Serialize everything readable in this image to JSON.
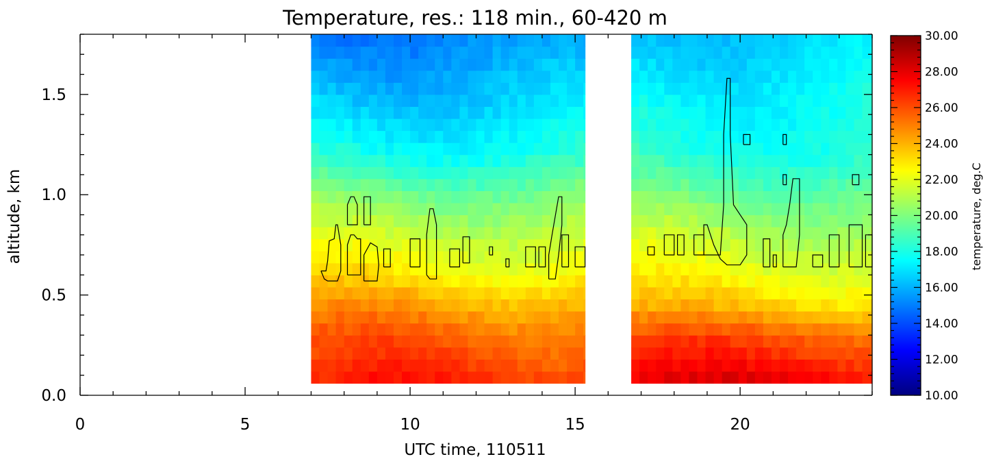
{
  "chart_data": {
    "type": "heatmap",
    "title": "Temperature, res.: 118 min.,  60-420 m",
    "xlabel": "UTC time, 110511",
    "ylabel": "altitude, km",
    "xlim": [
      0,
      24
    ],
    "ylim": [
      0,
      1.8
    ],
    "x_ticks": [
      0,
      5,
      10,
      15,
      20
    ],
    "x_tick_labels": [
      "0",
      "5",
      "10",
      "15",
      "20"
    ],
    "y_ticks": [
      0,
      0.5,
      1.0,
      1.5
    ],
    "y_tick_labels": [
      "0.0",
      "0.5",
      "1.0",
      "1.5"
    ],
    "colorbar": {
      "label": "temperature, deg.C",
      "min": 10,
      "max": 30,
      "tick_labels": [
        "10.00",
        "12.00",
        "14.00",
        "16.00",
        "18.00",
        "20.00",
        "22.00",
        "24.00",
        "26.00",
        "28.00",
        "30.00"
      ],
      "colormap": [
        "#00007f",
        "#0000ff",
        "#007fff",
        "#00ffff",
        "#7fff7f",
        "#ffff00",
        "#ff7f00",
        "#ff0000",
        "#7f0000"
      ]
    },
    "data_segments": [
      {
        "x_start": 7.0,
        "x_end": 15.3
      },
      {
        "x_start": 16.7,
        "x_end": 24.0
      }
    ],
    "altitude_range_km": [
      0.06,
      1.8
    ],
    "time_step_h": 0.25,
    "altitude_step_km": 0.06,
    "temperature_profile": [
      {
        "altitude_km": 0.06,
        "left_segment": 26.7,
        "right_segment": 27.8
      },
      {
        "altitude_km": 0.3,
        "left_segment": 25.5,
        "right_segment": 25.7
      },
      {
        "altitude_km": 0.45,
        "left_segment": 24.3,
        "right_segment": 23.5
      },
      {
        "altitude_km": 0.6,
        "left_segment": 22.8,
        "right_segment": 22.3
      },
      {
        "altitude_km": 0.8,
        "left_segment": 21.5,
        "right_segment": 21.2
      },
      {
        "altitude_km": 1.0,
        "left_segment": 20.0,
        "right_segment": 19.7
      },
      {
        "altitude_km": 1.2,
        "left_segment": 18.0,
        "right_segment": 18.3
      },
      {
        "altitude_km": 1.5,
        "left_segment": 16.5,
        "right_segment": 17.6
      },
      {
        "altitude_km": 1.8,
        "left_segment": 15.2,
        "right_segment": 16.6
      }
    ],
    "contours": [
      {
        "x": [
          7.3,
          7.45,
          7.5,
          7.55,
          7.7,
          7.75,
          7.8,
          7.9,
          7.9,
          7.8,
          7.5,
          7.4,
          7.3,
          7.3
        ],
        "y": [
          0.62,
          0.62,
          0.67,
          0.77,
          0.78,
          0.85,
          0.85,
          0.75,
          0.62,
          0.57,
          0.57,
          0.58,
          0.62,
          0.62
        ]
      },
      {
        "x": [
          8.1,
          8.4,
          8.4,
          8.3,
          8.2,
          8.1,
          8.1
        ],
        "y": [
          0.85,
          0.85,
          0.95,
          0.99,
          0.99,
          0.95,
          0.85
        ]
      },
      {
        "x": [
          8.6,
          8.8,
          8.8,
          8.6,
          8.6
        ],
        "y": [
          0.85,
          0.85,
          0.99,
          0.99,
          0.85
        ]
      },
      {
        "x": [
          8.1,
          8.5,
          8.5,
          8.4,
          8.3,
          8.2,
          8.1,
          8.1
        ],
        "y": [
          0.6,
          0.6,
          0.78,
          0.78,
          0.8,
          0.8,
          0.75,
          0.6
        ]
      },
      {
        "x": [
          8.6,
          9.0,
          9.05,
          9.0,
          8.8,
          8.6,
          8.6
        ],
        "y": [
          0.57,
          0.57,
          0.65,
          0.74,
          0.76,
          0.7,
          0.57
        ]
      },
      {
        "x": [
          9.2,
          9.4,
          9.4,
          9.2,
          9.2
        ],
        "y": [
          0.64,
          0.64,
          0.73,
          0.73,
          0.64
        ]
      },
      {
        "x": [
          10.0,
          10.3,
          10.3,
          10.0,
          10.0
        ],
        "y": [
          0.64,
          0.64,
          0.78,
          0.78,
          0.64
        ]
      },
      {
        "x": [
          10.5,
          10.6,
          10.8,
          10.8,
          10.7,
          10.6,
          10.5,
          10.5
        ],
        "y": [
          0.6,
          0.58,
          0.58,
          0.85,
          0.93,
          0.93,
          0.8,
          0.6
        ]
      },
      {
        "x": [
          11.2,
          11.5,
          11.5,
          11.2,
          11.2
        ],
        "y": [
          0.64,
          0.64,
          0.73,
          0.73,
          0.64
        ]
      },
      {
        "x": [
          11.6,
          11.8,
          11.8,
          11.6,
          11.6
        ],
        "y": [
          0.66,
          0.66,
          0.79,
          0.79,
          0.66
        ]
      },
      {
        "x": [
          12.4,
          12.5,
          12.5,
          12.4,
          12.4
        ],
        "y": [
          0.7,
          0.7,
          0.74,
          0.74,
          0.7
        ]
      },
      {
        "x": [
          12.9,
          13.0,
          13.0,
          12.9,
          12.9
        ],
        "y": [
          0.64,
          0.64,
          0.68,
          0.68,
          0.64
        ]
      },
      {
        "x": [
          13.5,
          13.8,
          13.8,
          13.5,
          13.5
        ],
        "y": [
          0.64,
          0.64,
          0.74,
          0.74,
          0.64
        ]
      },
      {
        "x": [
          13.9,
          14.1,
          14.1,
          13.9,
          13.9
        ],
        "y": [
          0.64,
          0.64,
          0.74,
          0.74,
          0.64
        ]
      },
      {
        "x": [
          14.2,
          14.4,
          14.5,
          14.6,
          14.6,
          14.5,
          14.3,
          14.2,
          14.2
        ],
        "y": [
          0.58,
          0.58,
          0.7,
          0.85,
          0.99,
          0.99,
          0.8,
          0.7,
          0.58
        ]
      },
      {
        "x": [
          14.6,
          14.8,
          14.8,
          14.6,
          14.6
        ],
        "y": [
          0.64,
          0.64,
          0.8,
          0.8,
          0.64
        ]
      },
      {
        "x": [
          15.0,
          15.3,
          15.3,
          15.0,
          15.0
        ],
        "y": [
          0.64,
          0.64,
          0.74,
          0.74,
          0.64
        ]
      },
      {
        "x": [
          17.2,
          17.4,
          17.4,
          17.2,
          17.2
        ],
        "y": [
          0.7,
          0.7,
          0.74,
          0.74,
          0.7
        ]
      },
      {
        "x": [
          17.7,
          18.0,
          18.0,
          17.7,
          17.7
        ],
        "y": [
          0.7,
          0.7,
          0.8,
          0.8,
          0.7
        ]
      },
      {
        "x": [
          18.1,
          18.3,
          18.3,
          18.1,
          18.1
        ],
        "y": [
          0.7,
          0.7,
          0.8,
          0.8,
          0.7
        ]
      },
      {
        "x": [
          18.6,
          18.9,
          18.9,
          18.6,
          18.6
        ],
        "y": [
          0.7,
          0.7,
          0.8,
          0.8,
          0.7
        ]
      },
      {
        "x": [
          18.9,
          19.4,
          19.5,
          19.5,
          19.6,
          19.7,
          19.7,
          19.8,
          20.2,
          20.2,
          20.0,
          19.8,
          19.6,
          19.4,
          19.2,
          19.0,
          18.9,
          18.9
        ],
        "y": [
          0.7,
          0.7,
          0.95,
          1.3,
          1.58,
          1.58,
          1.3,
          0.95,
          0.85,
          0.7,
          0.65,
          0.65,
          0.65,
          0.68,
          0.75,
          0.85,
          0.85,
          0.7
        ]
      },
      {
        "x": [
          20.1,
          20.3,
          20.3,
          20.1,
          20.1
        ],
        "y": [
          1.25,
          1.25,
          1.3,
          1.3,
          1.25
        ]
      },
      {
        "x": [
          20.7,
          20.9,
          20.9,
          20.7,
          20.7
        ],
        "y": [
          0.64,
          0.64,
          0.78,
          0.78,
          0.64
        ]
      },
      {
        "x": [
          21.0,
          21.1,
          21.1,
          21.0,
          21.0
        ],
        "y": [
          0.64,
          0.64,
          0.7,
          0.7,
          0.64
        ]
      },
      {
        "x": [
          21.3,
          21.7,
          21.8,
          21.8,
          21.6,
          21.5,
          21.4,
          21.3,
          21.3
        ],
        "y": [
          0.64,
          0.64,
          0.8,
          1.08,
          1.08,
          0.95,
          0.85,
          0.8,
          0.64
        ]
      },
      {
        "x": [
          21.3,
          21.4,
          21.4,
          21.3,
          21.3
        ],
        "y": [
          1.25,
          1.25,
          1.3,
          1.3,
          1.25
        ]
      },
      {
        "x": [
          21.3,
          21.4,
          21.4,
          21.3,
          21.3
        ],
        "y": [
          1.05,
          1.05,
          1.1,
          1.1,
          1.05
        ]
      },
      {
        "x": [
          22.2,
          22.5,
          22.5,
          22.2,
          22.2
        ],
        "y": [
          0.64,
          0.64,
          0.7,
          0.7,
          0.64
        ]
      },
      {
        "x": [
          22.7,
          23.0,
          23.0,
          22.7,
          22.7
        ],
        "y": [
          0.64,
          0.64,
          0.8,
          0.8,
          0.64
        ]
      },
      {
        "x": [
          23.4,
          23.6,
          23.6,
          23.4,
          23.4
        ],
        "y": [
          1.05,
          1.05,
          1.1,
          1.1,
          1.05
        ]
      },
      {
        "x": [
          23.3,
          23.7,
          23.7,
          23.3,
          23.3
        ],
        "y": [
          0.64,
          0.64,
          0.85,
          0.85,
          0.64
        ]
      },
      {
        "x": [
          23.8,
          24.0,
          24.0,
          23.8,
          23.8
        ],
        "y": [
          0.64,
          0.64,
          0.8,
          0.8,
          0.64
        ]
      }
    ]
  }
}
